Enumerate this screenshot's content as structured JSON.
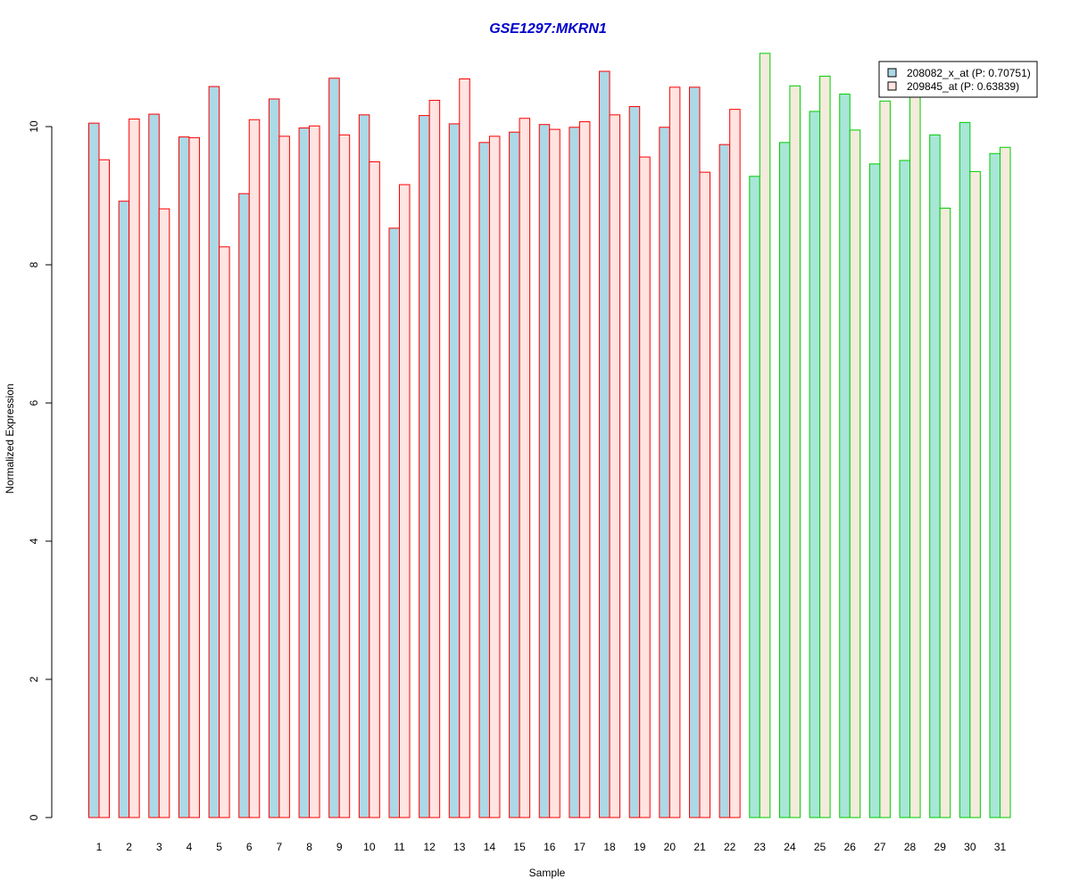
{
  "chart_data": {
    "type": "bar",
    "title": "GSE1297:MKRN1",
    "xlabel": "Sample",
    "ylabel": "Normalized Expression",
    "ylim": [
      0,
      11.1
    ],
    "yticks": [
      0,
      2,
      4,
      6,
      8,
      10
    ],
    "grid": false,
    "legend_position": "top-right",
    "categories": [
      "1",
      "2",
      "3",
      "4",
      "5",
      "6",
      "7",
      "8",
      "9",
      "10",
      "11",
      "12",
      "13",
      "14",
      "15",
      "16",
      "17",
      "18",
      "19",
      "20",
      "21",
      "22",
      "23",
      "24",
      "25",
      "26",
      "27",
      "28",
      "29",
      "30",
      "31"
    ],
    "group_colors": {
      "group_1": {
        "samples": "1-22",
        "border": "#FF0000"
      },
      "group_2": {
        "samples": "23-31",
        "border": "#00CC00"
      }
    },
    "series": [
      {
        "name": "208082_x_at (P: 0.70751)",
        "fill_group_1": "#ADD8E6",
        "fill_group_2": "#A8E6D8",
        "values": [
          10.05,
          8.92,
          10.18,
          9.85,
          10.58,
          9.03,
          10.4,
          9.98,
          10.7,
          10.17,
          8.53,
          10.16,
          10.04,
          9.77,
          9.92,
          10.03,
          9.99,
          10.8,
          10.29,
          9.99,
          10.57,
          9.74,
          9.28,
          9.77,
          10.22,
          10.47,
          9.46,
          9.51,
          9.88,
          10.06,
          9.61
        ]
      },
      {
        "name": "209845_at (P: 0.63839)",
        "fill_group_1": "#FFE4E1",
        "fill_group_2": "#F5EBDC",
        "values": [
          9.52,
          10.11,
          8.81,
          9.84,
          8.26,
          10.1,
          9.86,
          10.01,
          9.88,
          9.49,
          9.16,
          10.38,
          10.69,
          9.86,
          10.12,
          9.96,
          10.07,
          10.17,
          9.56,
          10.57,
          9.34,
          10.25,
          11.06,
          10.59,
          10.73,
          9.95,
          10.37,
          10.56,
          8.82,
          9.35,
          9.7
        ]
      }
    ]
  }
}
